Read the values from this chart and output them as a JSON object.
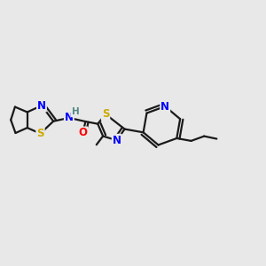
{
  "bg_color": "#e8e8e8",
  "bond_color": "#1a1a1a",
  "bond_width": 1.6,
  "atom_colors": {
    "N": "#0000ff",
    "S": "#ccaa00",
    "O": "#ff0000",
    "H": "#558888",
    "C": "#1a1a1a"
  },
  "font_size": 8.5,
  "fig_bg": "#e8e8e8"
}
